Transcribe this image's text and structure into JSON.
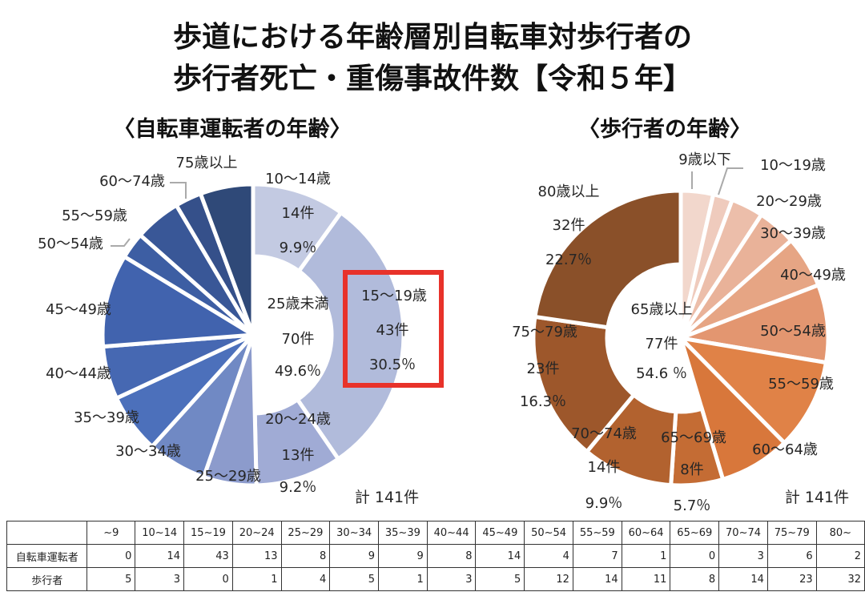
{
  "title": {
    "line1": "歩道における年齢層別自転車対歩行者の",
    "line2": "歩行者死亡・重傷事故件数【令和５年】"
  },
  "chart_data": [
    {
      "type": "pie",
      "title": "〈自転車運転者の年齢〉",
      "categories": [
        "10〜14歳",
        "15〜19歳",
        "20〜24歳",
        "25〜29歳",
        "30〜34歳",
        "35〜39歳",
        "40〜44歳",
        "45〜49歳",
        "50〜54歳",
        "55〜59歳",
        "60〜74歳",
        "75歳以上"
      ],
      "values": [
        14,
        43,
        13,
        8,
        9,
        9,
        8,
        14,
        4,
        7,
        4,
        8
      ],
      "colors": [
        "#c3cae2",
        "#b1bbdb",
        "#a0abd5",
        "#8c9bcc",
        "#7089c4",
        "#4c70bb",
        "#4668b2",
        "#4163ae",
        "#3d5ea3",
        "#395797",
        "#35508a",
        "#2f4978"
      ],
      "ring": [
        true,
        true,
        true,
        false,
        false,
        false,
        false,
        false,
        false,
        false,
        false,
        false
      ],
      "slice_labels": {
        "s0_count": "14件",
        "s0_pct": "9.9％",
        "s1_count": "43件",
        "s1_pct": "30.5％",
        "s2_count": "13件",
        "s2_pct": "9.2％"
      },
      "center": {
        "label": "25歳未満",
        "count": "70件",
        "pct": "49.6％"
      },
      "total": "計 141件"
    },
    {
      "type": "pie",
      "title": "〈歩行者の年齢〉",
      "categories": [
        "9歳以下",
        "10〜19歳",
        "20〜29歳",
        "30〜39歳",
        "40〜49歳",
        "50〜54歳",
        "55〜59歳",
        "60〜64歳",
        "65〜69歳",
        "70〜74歳",
        "75〜79歳",
        "80歳以上"
      ],
      "values": [
        5,
        3,
        5,
        6,
        8,
        12,
        14,
        11,
        8,
        14,
        23,
        32
      ],
      "colors": [
        "#f2d7cc",
        "#efcbbd",
        "#ecbeaa",
        "#e9b299",
        "#e6a584",
        "#e39670",
        "#e08247",
        "#d8773b",
        "#c46c34",
        "#b2622f",
        "#9d572b",
        "#8a5029"
      ],
      "ring": [
        false,
        false,
        false,
        false,
        false,
        false,
        false,
        false,
        true,
        true,
        true,
        true
      ],
      "slice_labels": {
        "s8_count": "8件",
        "s8_pct": "5.7％",
        "s9_count": "14件",
        "s9_pct": "9.9％",
        "s10_count": "23件",
        "s10_pct": "16.3％",
        "s11_count": "32件",
        "s11_pct": "22.7％"
      },
      "center": {
        "label": "65歳以上",
        "count": "77件",
        "pct": "54.6 ％"
      },
      "total": "計 141件"
    }
  ],
  "table": {
    "headers": [
      "",
      "~9",
      "10~14",
      "15~19",
      "20~24",
      "25~29",
      "30~34",
      "35~39",
      "40~44",
      "45~49",
      "50~54",
      "55~59",
      "60~64",
      "65~69",
      "70~74",
      "75~79",
      "80~"
    ],
    "rows": [
      {
        "label": "自転車運転者",
        "values": [
          0,
          14,
          43,
          13,
          8,
          9,
          9,
          8,
          14,
          4,
          7,
          1,
          0,
          3,
          6,
          2
        ]
      },
      {
        "label": "歩行者",
        "values": [
          5,
          3,
          0,
          1,
          4,
          5,
          1,
          3,
          5,
          12,
          14,
          11,
          8,
          14,
          23,
          32
        ]
      }
    ]
  },
  "highlight_color": "#e8322a"
}
